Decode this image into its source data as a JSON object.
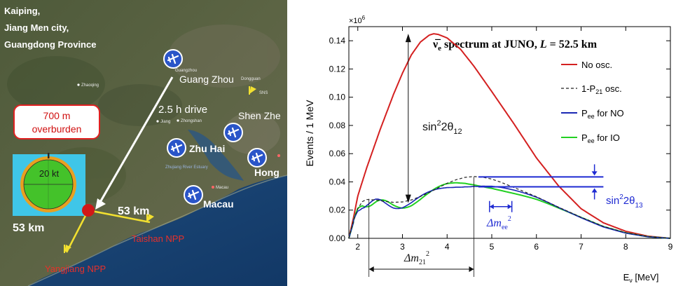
{
  "map": {
    "location_lines": [
      "Kaiping,",
      "Jiang Men city,",
      "Guangdong Province"
    ],
    "overburden_lines": [
      "700 m",
      "overburden"
    ],
    "detector_label": "20 kt",
    "drive_label": "2.5 h drive",
    "dist_taishan": "53 km",
    "dist_yangjiang": "53 km",
    "npp_taishan": "Taishan NPP",
    "npp_yangjiang": "Yangjiang NPP",
    "airports": {
      "guangzhou": "Guang Zhou",
      "shenzhen": "Shen Zhe",
      "zhuhai": "Zhu Hai",
      "hongkong": "Hong",
      "macau": "Macau"
    },
    "small_labels": {
      "guangzhou_cn": "Guangzhou",
      "zhaoqing": "Zhaoqing",
      "dongguan": "Dongguan",
      "jiangmen": "Jiang",
      "zhongshan": "Zhongshan",
      "estuary": "Zhujiang River Estuary",
      "macau_cn": "Macau",
      "sns": "SNS"
    },
    "colors": {
      "text_white": "#ffffff",
      "npp_text": "#e8302a",
      "overburden_border": "#e02020",
      "site_dot": "#d01818",
      "line_yellow": "#f2e030",
      "plane_blue": "#2a55c8"
    }
  },
  "chart_data": {
    "type": "line",
    "title_parts": {
      "pre": "ν̅",
      "sub": "e",
      "post": " spectrum at JUNO, ",
      "L": "L",
      "rest": " = 52.5 km"
    },
    "ylabel": "Events / 1 MeV",
    "xlabel_parts": {
      "pre": "E",
      "sub": "ν",
      "post": " [MeV]"
    },
    "y_multiplier": {
      "base": "×10",
      "exp": "6"
    },
    "xlim": [
      1.8,
      9
    ],
    "ylim": [
      0,
      0.15
    ],
    "x_ticks": [
      "2",
      "3",
      "4",
      "5",
      "6",
      "7",
      "8",
      "9"
    ],
    "y_ticks": [
      "0.00",
      "0.02",
      "0.04",
      "0.06",
      "0.08",
      "0.10",
      "0.12",
      "0.14"
    ],
    "legend": {
      "no_osc": "No osc.",
      "p21_parts": {
        "pre": "1-P",
        "sub": "21",
        "post": " osc."
      },
      "no_parts": {
        "pre": "P",
        "sub": "ee",
        "post": " for NO"
      },
      "io_parts": {
        "pre": "P",
        "sub": "ee",
        "post": " for IO"
      }
    },
    "annotations": {
      "theta12": {
        "pre": "sin",
        "sup": "2",
        "mid": "2θ",
        "sub": "12"
      },
      "theta13": {
        "pre": "sin",
        "sup": "2",
        "mid": "2θ",
        "sub": "13"
      },
      "dm21": {
        "pre": "Δm",
        "sub": "21",
        "sup": "2"
      },
      "dmee": {
        "pre": "Δm",
        "sub": "ee",
        "sup": "2"
      }
    },
    "series": [
      {
        "name": "No osc.",
        "color": "#d42020",
        "style": "solid",
        "points": [
          [
            1.8,
            0.0
          ],
          [
            1.9,
            0.014
          ],
          [
            2.0,
            0.03
          ],
          [
            2.2,
            0.05
          ],
          [
            2.5,
            0.077
          ],
          [
            2.8,
            0.102
          ],
          [
            3.0,
            0.117
          ],
          [
            3.2,
            0.13
          ],
          [
            3.4,
            0.139
          ],
          [
            3.6,
            0.144
          ],
          [
            3.7,
            0.145
          ],
          [
            3.8,
            0.1445
          ],
          [
            4.0,
            0.142
          ],
          [
            4.3,
            0.134
          ],
          [
            4.6,
            0.122
          ],
          [
            5.0,
            0.104
          ],
          [
            5.5,
            0.081
          ],
          [
            6.0,
            0.057
          ],
          [
            6.5,
            0.037
          ],
          [
            7.0,
            0.021
          ],
          [
            7.5,
            0.011
          ],
          [
            8.0,
            0.005
          ],
          [
            8.5,
            0.0015
          ],
          [
            9.0,
            0.0
          ]
        ]
      },
      {
        "name": "1-P21 osc.",
        "color": "#222222",
        "style": "dashed",
        "points": [
          [
            1.8,
            0.0
          ],
          [
            1.9,
            0.012
          ],
          [
            2.0,
            0.021
          ],
          [
            2.1,
            0.026
          ],
          [
            2.2,
            0.0275
          ],
          [
            2.4,
            0.0272
          ],
          [
            2.6,
            0.0262
          ],
          [
            2.8,
            0.0255
          ],
          [
            3.0,
            0.0258
          ],
          [
            3.2,
            0.0272
          ],
          [
            3.4,
            0.0296
          ],
          [
            3.6,
            0.0325
          ],
          [
            3.8,
            0.0358
          ],
          [
            4.0,
            0.039
          ],
          [
            4.2,
            0.0415
          ],
          [
            4.4,
            0.0432
          ],
          [
            4.6,
            0.0438
          ],
          [
            4.8,
            0.0433
          ],
          [
            5.0,
            0.042
          ],
          [
            5.2,
            0.0398
          ],
          [
            5.5,
            0.036
          ],
          [
            6.0,
            0.0295
          ],
          [
            6.5,
            0.022
          ],
          [
            7.0,
            0.015
          ],
          [
            7.5,
            0.0085
          ],
          [
            8.0,
            0.004
          ],
          [
            8.5,
            0.0012
          ],
          [
            9.0,
            0.0
          ]
        ]
      }
    ],
    "colors": {
      "no_osc": "#d42020",
      "no": "#1a28b4",
      "io": "#22d022",
      "annot_blue": "#1e2ad2",
      "annot_black": "#111111"
    }
  }
}
